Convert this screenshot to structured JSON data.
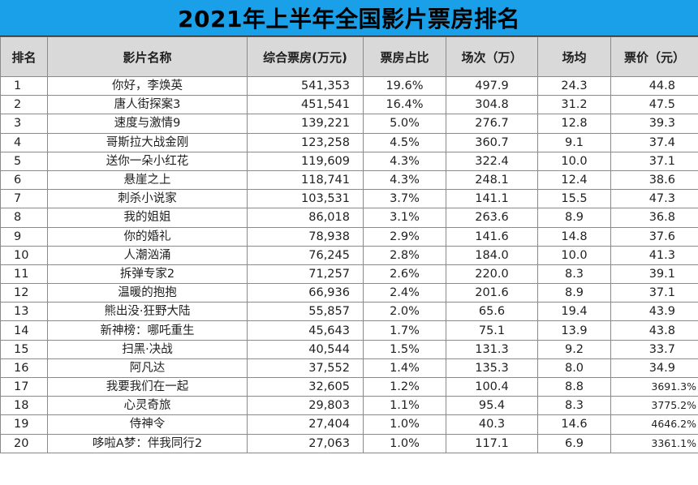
{
  "title": "2021年上半年全国影片票房排名",
  "headers": {
    "rank": "排名",
    "film": "影片名称",
    "box_office": "综合票房(万元)",
    "share": "票房占比",
    "sessions": "场次（万）",
    "avg": "场均",
    "price": "票价（元）"
  },
  "rows": [
    {
      "rank": "1",
      "film": "你好，李焕英",
      "box_office": "541,353",
      "share": "19.6%",
      "sessions": "497.9",
      "avg": "24.3",
      "price": "44.8"
    },
    {
      "rank": "2",
      "film": "唐人街探案3",
      "box_office": "451,541",
      "share": "16.4%",
      "sessions": "304.8",
      "avg": "31.2",
      "price": "47.5"
    },
    {
      "rank": "3",
      "film": "速度与激情9",
      "box_office": "139,221",
      "share": "5.0%",
      "sessions": "276.7",
      "avg": "12.8",
      "price": "39.3"
    },
    {
      "rank": "4",
      "film": "哥斯拉大战金刚",
      "box_office": "123,258",
      "share": "4.5%",
      "sessions": "360.7",
      "avg": "9.1",
      "price": "37.4"
    },
    {
      "rank": "5",
      "film": "送你一朵小红花",
      "box_office": "119,609",
      "share": "4.3%",
      "sessions": "322.4",
      "avg": "10.0",
      "price": "37.1"
    },
    {
      "rank": "6",
      "film": "悬崖之上",
      "box_office": "118,741",
      "share": "4.3%",
      "sessions": "248.1",
      "avg": "12.4",
      "price": "38.6"
    },
    {
      "rank": "7",
      "film": "刺杀小说家",
      "box_office": "103,531",
      "share": "3.7%",
      "sessions": "141.1",
      "avg": "15.5",
      "price": "47.3"
    },
    {
      "rank": "8",
      "film": "我的姐姐",
      "box_office": "86,018",
      "share": "3.1%",
      "sessions": "263.6",
      "avg": "8.9",
      "price": "36.8"
    },
    {
      "rank": "9",
      "film": "你的婚礼",
      "box_office": "78,938",
      "share": "2.9%",
      "sessions": "141.6",
      "avg": "14.8",
      "price": "37.6"
    },
    {
      "rank": "10",
      "film": "人潮汹涌",
      "box_office": "76,245",
      "share": "2.8%",
      "sessions": "184.0",
      "avg": "10.0",
      "price": "41.3"
    },
    {
      "rank": "11",
      "film": "拆弹专家2",
      "box_office": "71,257",
      "share": "2.6%",
      "sessions": "220.0",
      "avg": "8.3",
      "price": "39.1"
    },
    {
      "rank": "12",
      "film": "温暖的抱抱",
      "box_office": "66,936",
      "share": "2.4%",
      "sessions": "201.6",
      "avg": "8.9",
      "price": "37.1"
    },
    {
      "rank": "13",
      "film": "熊出没·狂野大陆",
      "box_office": "55,857",
      "share": "2.0%",
      "sessions": "65.6",
      "avg": "19.4",
      "price": "43.9"
    },
    {
      "rank": "14",
      "film": "新神榜：哪吒重生",
      "box_office": "45,643",
      "share": "1.7%",
      "sessions": "75.1",
      "avg": "13.9",
      "price": "43.8"
    },
    {
      "rank": "15",
      "film": "扫黑·决战",
      "box_office": "40,544",
      "share": "1.5%",
      "sessions": "131.3",
      "avg": "9.2",
      "price": "33.7"
    },
    {
      "rank": "16",
      "film": "阿凡达",
      "box_office": "37,552",
      "share": "1.4%",
      "sessions": "135.3",
      "avg": "8.0",
      "price": "34.9"
    },
    {
      "rank": "17",
      "film": "我要我们在一起",
      "box_office": "32,605",
      "share": "1.2%",
      "sessions": "100.4",
      "avg": "8.8",
      "price": "3691.3%"
    },
    {
      "rank": "18",
      "film": "心灵奇旅",
      "box_office": "29,803",
      "share": "1.1%",
      "sessions": "95.4",
      "avg": "8.3",
      "price": "3775.2%"
    },
    {
      "rank": "19",
      "film": "侍神令",
      "box_office": "27,404",
      "share": "1.0%",
      "sessions": "40.3",
      "avg": "14.6",
      "price": "4646.2%"
    },
    {
      "rank": "20",
      "film": "哆啦A梦：伴我同行2",
      "box_office": "27,063",
      "share": "1.0%",
      "sessions": "117.1",
      "avg": "6.9",
      "price": "3361.1%"
    }
  ]
}
